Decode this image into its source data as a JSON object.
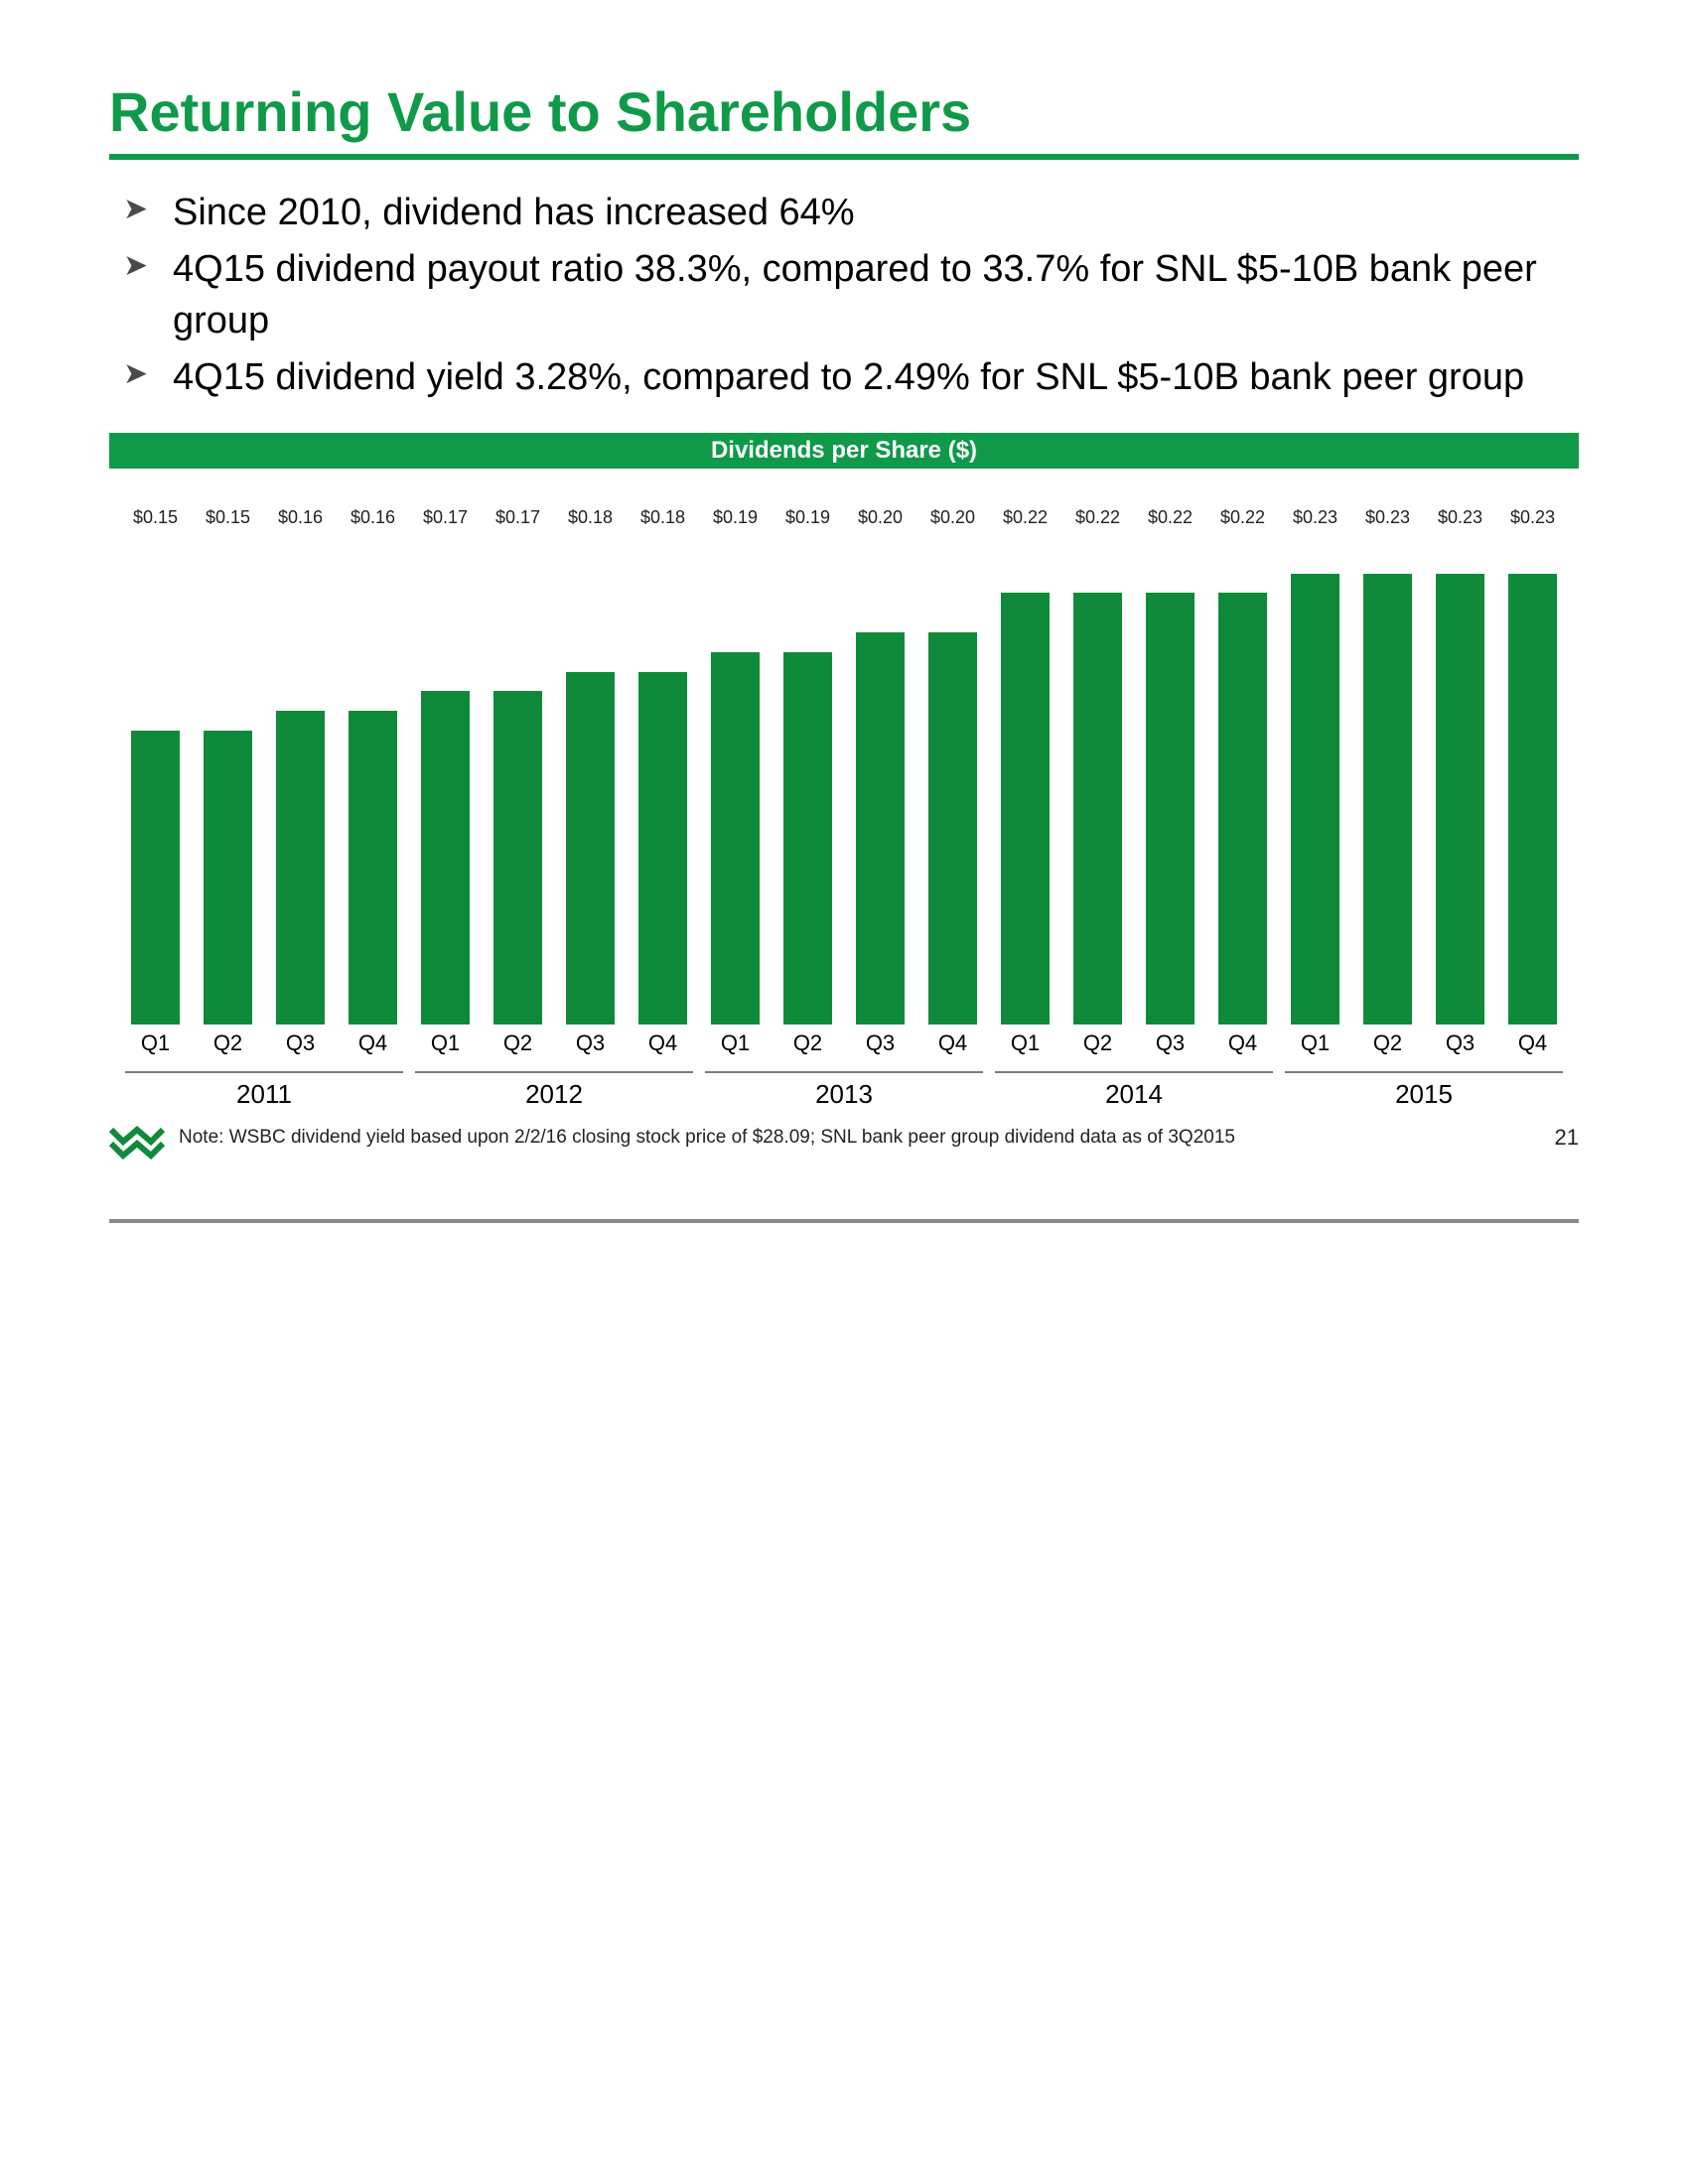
{
  "title": "Returning Value to Shareholders",
  "bullets": [
    "Since 2010, dividend has increased 64%",
    "4Q15 dividend payout ratio 38.3%, compared to 33.7% for SNL $5-10B bank peer group",
    "4Q15 dividend yield 3.28%, compared to 2.49% for SNL $5-10B bank peer group"
  ],
  "chart": {
    "type": "bar",
    "title": "Dividends per Share ($)",
    "title_bg": "#0f9a49",
    "title_color": "#ffffff",
    "title_fontsize": 24,
    "bar_color": "#0f8a3a",
    "label_fontsize": 18,
    "xaxis_fontsize": 22,
    "year_fontsize": 26,
    "ylim": [
      0,
      0.25
    ],
    "bar_width_pct": 68,
    "years": [
      {
        "year": "2011",
        "quarters": [
          {
            "q": "Q1",
            "value": 0.15,
            "label": "$0.15"
          },
          {
            "q": "Q2",
            "value": 0.15,
            "label": "$0.15"
          },
          {
            "q": "Q3",
            "value": 0.16,
            "label": "$0.16"
          },
          {
            "q": "Q4",
            "value": 0.16,
            "label": "$0.16"
          }
        ]
      },
      {
        "year": "2012",
        "quarters": [
          {
            "q": "Q1",
            "value": 0.17,
            "label": "$0.17"
          },
          {
            "q": "Q2",
            "value": 0.17,
            "label": "$0.17"
          },
          {
            "q": "Q3",
            "value": 0.18,
            "label": "$0.18"
          },
          {
            "q": "Q4",
            "value": 0.18,
            "label": "$0.18"
          }
        ]
      },
      {
        "year": "2013",
        "quarters": [
          {
            "q": "Q1",
            "value": 0.19,
            "label": "$0.19"
          },
          {
            "q": "Q2",
            "value": 0.19,
            "label": "$0.19"
          },
          {
            "q": "Q3",
            "value": 0.2,
            "label": "$0.20"
          },
          {
            "q": "Q4",
            "value": 0.2,
            "label": "$0.20"
          }
        ]
      },
      {
        "year": "2014",
        "quarters": [
          {
            "q": "Q1",
            "value": 0.22,
            "label": "$0.22"
          },
          {
            "q": "Q2",
            "value": 0.22,
            "label": "$0.22"
          },
          {
            "q": "Q3",
            "value": 0.22,
            "label": "$0.22"
          },
          {
            "q": "Q4",
            "value": 0.22,
            "label": "$0.22"
          }
        ]
      },
      {
        "year": "2015",
        "quarters": [
          {
            "q": "Q1",
            "value": 0.23,
            "label": "$0.23"
          },
          {
            "q": "Q2",
            "value": 0.23,
            "label": "$0.23"
          },
          {
            "q": "Q3",
            "value": 0.23,
            "label": "$0.23"
          },
          {
            "q": "Q4",
            "value": 0.23,
            "label": "$0.23"
          }
        ]
      }
    ]
  },
  "note": "Note:  WSBC dividend yield based upon 2/2/16 closing stock price of $28.09; SNL bank peer group dividend data as of 3Q2015",
  "page_number": "21",
  "logo_colors": {
    "stroke": "#0f8a3a",
    "fill": "#0f8a3a"
  }
}
